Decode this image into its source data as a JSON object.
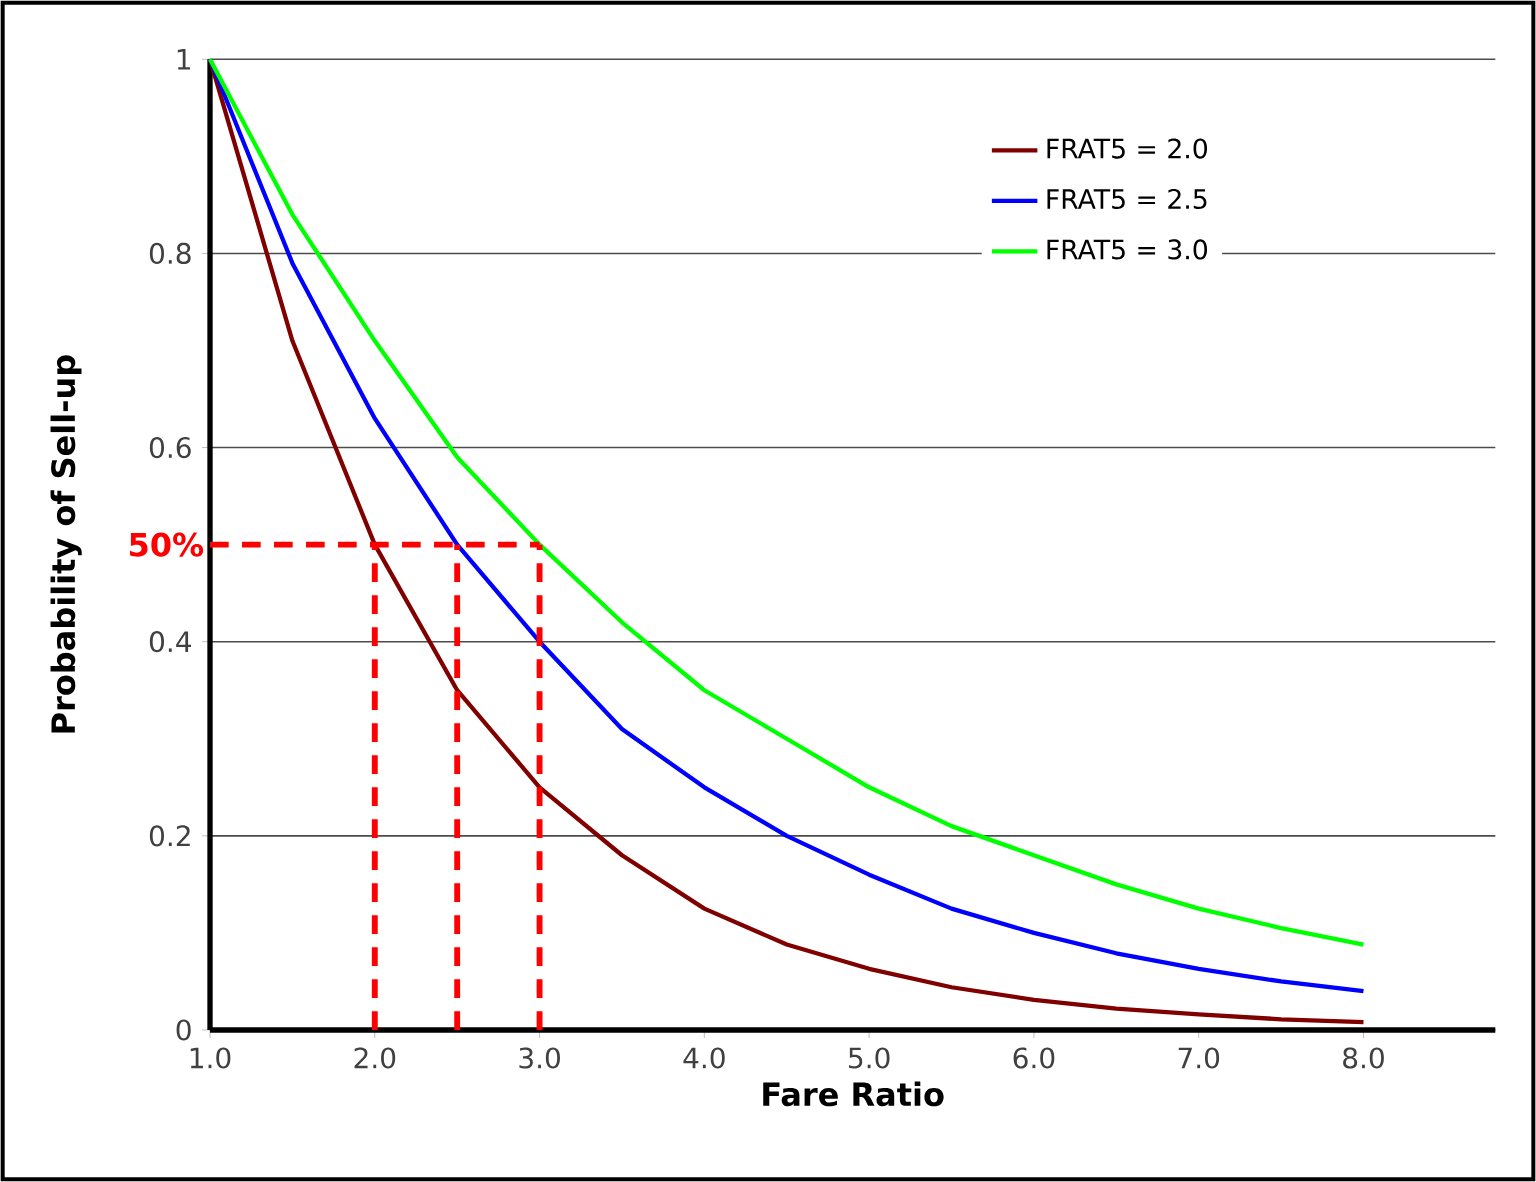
{
  "chart_data": {
    "type": "line",
    "xlabel": "Fare Ratio",
    "ylabel": "Probability of Sell-up",
    "x": [
      1,
      1.5,
      2,
      2.5,
      3,
      3.5,
      4,
      4.5,
      5,
      5.5,
      6,
      6.5,
      7,
      7.5,
      8
    ],
    "series": [
      {
        "name": "FRAT5 = 2.0",
        "color": "#800000",
        "values": [
          1,
          0.71,
          0.5,
          0.35,
          0.25,
          0.18,
          0.125,
          0.088,
          0.063,
          0.044,
          0.031,
          0.022,
          0.016,
          0.011,
          0.008
        ]
      },
      {
        "name": "FRAT5 = 2.5",
        "color": "#0000ff",
        "values": [
          1,
          0.79,
          0.63,
          0.5,
          0.4,
          0.31,
          0.25,
          0.2,
          0.16,
          0.125,
          0.1,
          0.079,
          0.063,
          0.05,
          0.04
        ]
      },
      {
        "name": "FRAT5 = 3.0",
        "color": "#00ff00",
        "values": [
          1,
          0.84,
          0.71,
          0.59,
          0.5,
          0.42,
          0.35,
          0.3,
          0.25,
          0.21,
          0.18,
          0.15,
          0.125,
          0.105,
          0.088
        ]
      }
    ],
    "xlim": [
      1,
      8.8
    ],
    "ylim": [
      0,
      1
    ],
    "xticks": [
      {
        "value": 1,
        "label": "1.0"
      },
      {
        "value": 2,
        "label": "2.0"
      },
      {
        "value": 3,
        "label": "3.0"
      },
      {
        "value": 4,
        "label": "4.0"
      },
      {
        "value": 5,
        "label": "5.0"
      },
      {
        "value": 6,
        "label": "6.0"
      },
      {
        "value": 7,
        "label": "7.0"
      },
      {
        "value": 8,
        "label": "8.0"
      }
    ],
    "yticks": [
      0,
      0.2,
      0.4,
      0.6,
      0.8,
      1
    ],
    "ref_lines": [
      {
        "axis": "y",
        "value": 0.5,
        "label": "50%",
        "color": "#ff0000",
        "line_style": "dashed"
      },
      {
        "axis": "x",
        "value": 2,
        "color": "#ff0000",
        "line_style": "dashed"
      },
      {
        "axis": "x",
        "value": 2.5,
        "color": "#ff0000",
        "line_style": "dashed"
      },
      {
        "axis": "x",
        "value": 3,
        "color": "#ff0000",
        "line_style": "dashed"
      }
    ],
    "grid": "y",
    "legend": "top right",
    "marker": "none",
    "line_style": "solid"
  }
}
